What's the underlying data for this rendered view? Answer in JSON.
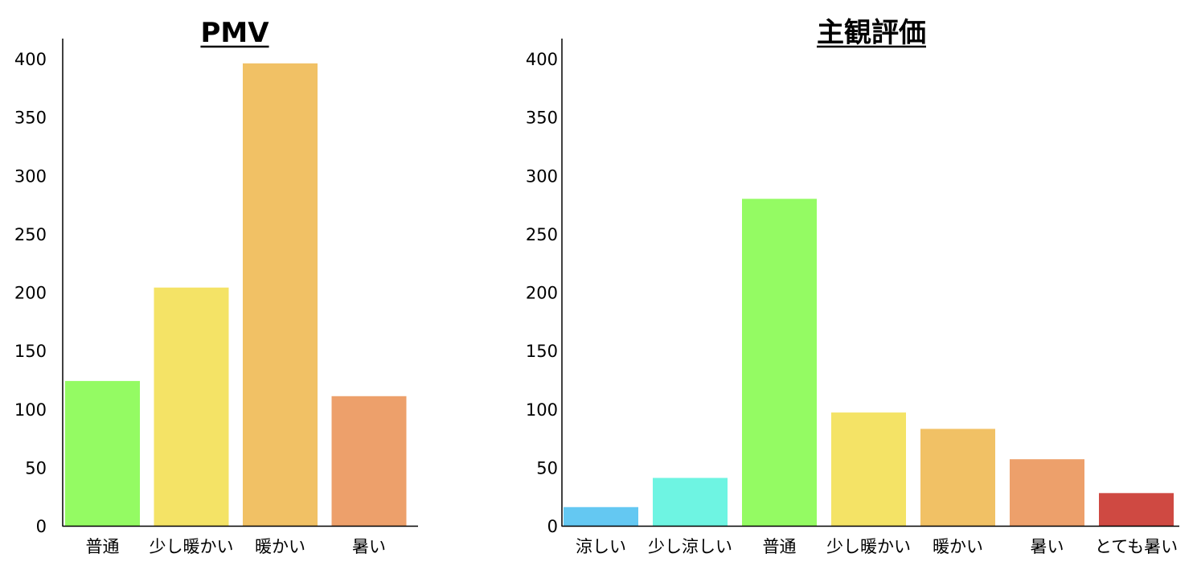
{
  "chart_data": [
    {
      "type": "bar",
      "title": "PMV",
      "xlabel": "",
      "ylabel": "",
      "ylim": [
        0,
        420
      ],
      "yticks": [
        0,
        50,
        100,
        150,
        200,
        250,
        300,
        350,
        400
      ],
      "categories": [
        "普通",
        "少し暖かい",
        "暖かい",
        "暑い"
      ],
      "values": [
        124,
        204,
        396,
        111
      ],
      "colors": [
        "#94fb63",
        "#f4e366",
        "#f1c165",
        "#eda06b"
      ]
    },
    {
      "type": "bar",
      "title": "主観評価",
      "xlabel": "",
      "ylabel": "",
      "ylim": [
        0,
        420
      ],
      "yticks": [
        0,
        50,
        100,
        150,
        200,
        250,
        300,
        350,
        400
      ],
      "categories": [
        "涼しい",
        "少し涼しい",
        "普通",
        "少し暖かい",
        "暖かい",
        "暑い",
        "とても暑い"
      ],
      "values": [
        16,
        41,
        280,
        97,
        83,
        57,
        28
      ],
      "colors": [
        "#64c8f2",
        "#6ef4e2",
        "#94fb63",
        "#f4e366",
        "#f1c165",
        "#eda06b",
        "#cf4942"
      ]
    }
  ]
}
